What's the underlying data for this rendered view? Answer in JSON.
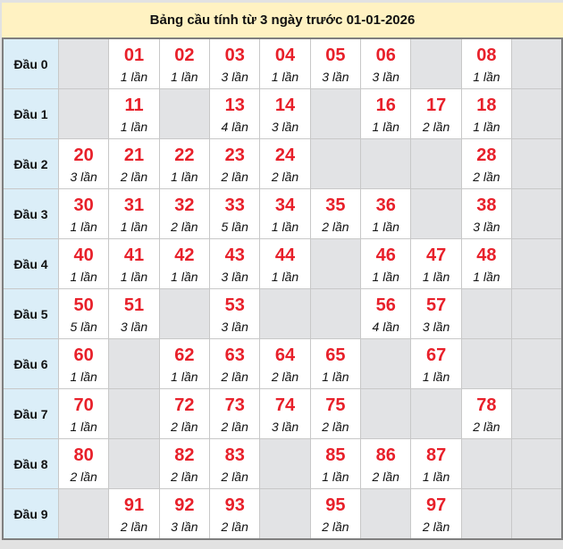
{
  "title": "Bảng cầu tính từ 3 ngày trước 01-01-2026",
  "colors": {
    "number": "#e8202a",
    "header_bg": "#fff2c2",
    "label_bg": "#dbeef8",
    "empty_bg": "#e2e3e5"
  },
  "rows": [
    {
      "label": "Đầu 0",
      "cells": [
        null,
        {
          "n": "01",
          "c": "1 lần"
        },
        {
          "n": "02",
          "c": "1 lần"
        },
        {
          "n": "03",
          "c": "3 lần"
        },
        {
          "n": "04",
          "c": "1 lần"
        },
        {
          "n": "05",
          "c": "3 lần"
        },
        {
          "n": "06",
          "c": "3 lần"
        },
        null,
        {
          "n": "08",
          "c": "1 lần"
        },
        null
      ]
    },
    {
      "label": "Đầu 1",
      "cells": [
        null,
        {
          "n": "11",
          "c": "1 lần"
        },
        null,
        {
          "n": "13",
          "c": "4 lần"
        },
        {
          "n": "14",
          "c": "3 lần"
        },
        null,
        {
          "n": "16",
          "c": "1 lần"
        },
        {
          "n": "17",
          "c": "2 lần"
        },
        {
          "n": "18",
          "c": "1 lần"
        },
        null
      ]
    },
    {
      "label": "Đầu 2",
      "cells": [
        {
          "n": "20",
          "c": "3 lần"
        },
        {
          "n": "21",
          "c": "2 lần"
        },
        {
          "n": "22",
          "c": "1 lần"
        },
        {
          "n": "23",
          "c": "2 lần"
        },
        {
          "n": "24",
          "c": "2 lần"
        },
        null,
        null,
        null,
        {
          "n": "28",
          "c": "2 lần"
        },
        null
      ]
    },
    {
      "label": "Đầu 3",
      "cells": [
        {
          "n": "30",
          "c": "1 lần"
        },
        {
          "n": "31",
          "c": "1 lần"
        },
        {
          "n": "32",
          "c": "2 lần"
        },
        {
          "n": "33",
          "c": "5 lần"
        },
        {
          "n": "34",
          "c": "1 lần"
        },
        {
          "n": "35",
          "c": "2 lần"
        },
        {
          "n": "36",
          "c": "1 lần"
        },
        null,
        {
          "n": "38",
          "c": "3 lần"
        },
        null
      ]
    },
    {
      "label": "Đầu 4",
      "cells": [
        {
          "n": "40",
          "c": "1 lần"
        },
        {
          "n": "41",
          "c": "1 lần"
        },
        {
          "n": "42",
          "c": "1 lần"
        },
        {
          "n": "43",
          "c": "3 lần"
        },
        {
          "n": "44",
          "c": "1 lần"
        },
        null,
        {
          "n": "46",
          "c": "1 lần"
        },
        {
          "n": "47",
          "c": "1 lần"
        },
        {
          "n": "48",
          "c": "1 lần"
        },
        null
      ]
    },
    {
      "label": "Đầu 5",
      "cells": [
        {
          "n": "50",
          "c": "5 lần"
        },
        {
          "n": "51",
          "c": "3 lần"
        },
        null,
        {
          "n": "53",
          "c": "3 lần"
        },
        null,
        null,
        {
          "n": "56",
          "c": "4 lần"
        },
        {
          "n": "57",
          "c": "3 lần"
        },
        null,
        null
      ]
    },
    {
      "label": "Đầu 6",
      "cells": [
        {
          "n": "60",
          "c": "1 lần"
        },
        null,
        {
          "n": "62",
          "c": "1 lần"
        },
        {
          "n": "63",
          "c": "2 lần"
        },
        {
          "n": "64",
          "c": "2 lần"
        },
        {
          "n": "65",
          "c": "1 lần"
        },
        null,
        {
          "n": "67",
          "c": "1 lần"
        },
        null,
        null
      ]
    },
    {
      "label": "Đầu 7",
      "cells": [
        {
          "n": "70",
          "c": "1 lần"
        },
        null,
        {
          "n": "72",
          "c": "2 lần"
        },
        {
          "n": "73",
          "c": "2 lần"
        },
        {
          "n": "74",
          "c": "3 lần"
        },
        {
          "n": "75",
          "c": "2 lần"
        },
        null,
        null,
        {
          "n": "78",
          "c": "2 lần"
        },
        null
      ]
    },
    {
      "label": "Đầu 8",
      "cells": [
        {
          "n": "80",
          "c": "2 lần"
        },
        null,
        {
          "n": "82",
          "c": "2 lần"
        },
        {
          "n": "83",
          "c": "2 lần"
        },
        null,
        {
          "n": "85",
          "c": "1 lần"
        },
        {
          "n": "86",
          "c": "2 lần"
        },
        {
          "n": "87",
          "c": "1 lần"
        },
        null,
        null
      ]
    },
    {
      "label": "Đầu 9",
      "cells": [
        null,
        {
          "n": "91",
          "c": "2 lần"
        },
        {
          "n": "92",
          "c": "3 lần"
        },
        {
          "n": "93",
          "c": "2 lần"
        },
        null,
        {
          "n": "95",
          "c": "2 lần"
        },
        null,
        {
          "n": "97",
          "c": "2 lần"
        },
        null,
        null
      ]
    }
  ]
}
